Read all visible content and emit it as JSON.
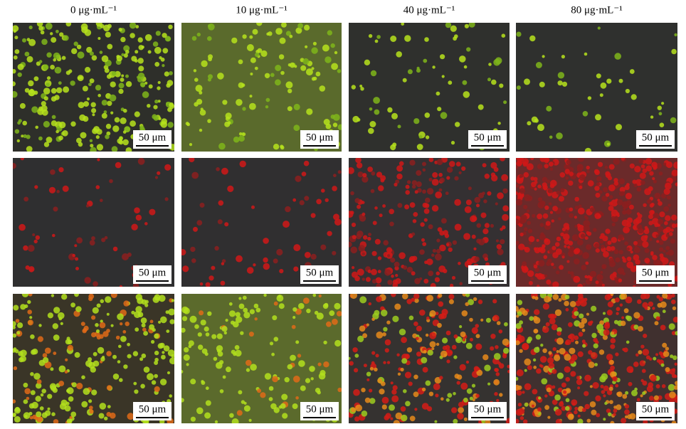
{
  "column_labels": [
    "0 μg·mL⁻¹",
    "10 μg·mL⁻¹",
    "40 μg·mL⁻¹",
    "80 μg·mL⁻¹"
  ],
  "panels": [
    [
      "50 μm",
      "50 μm",
      "50 μm",
      "50 μm"
    ],
    [
      "50 μm",
      "50 μm",
      "50 μm",
      "50 μm"
    ],
    [
      "50 μm",
      "50 μm",
      "50 μm",
      "50 μm"
    ]
  ]
}
